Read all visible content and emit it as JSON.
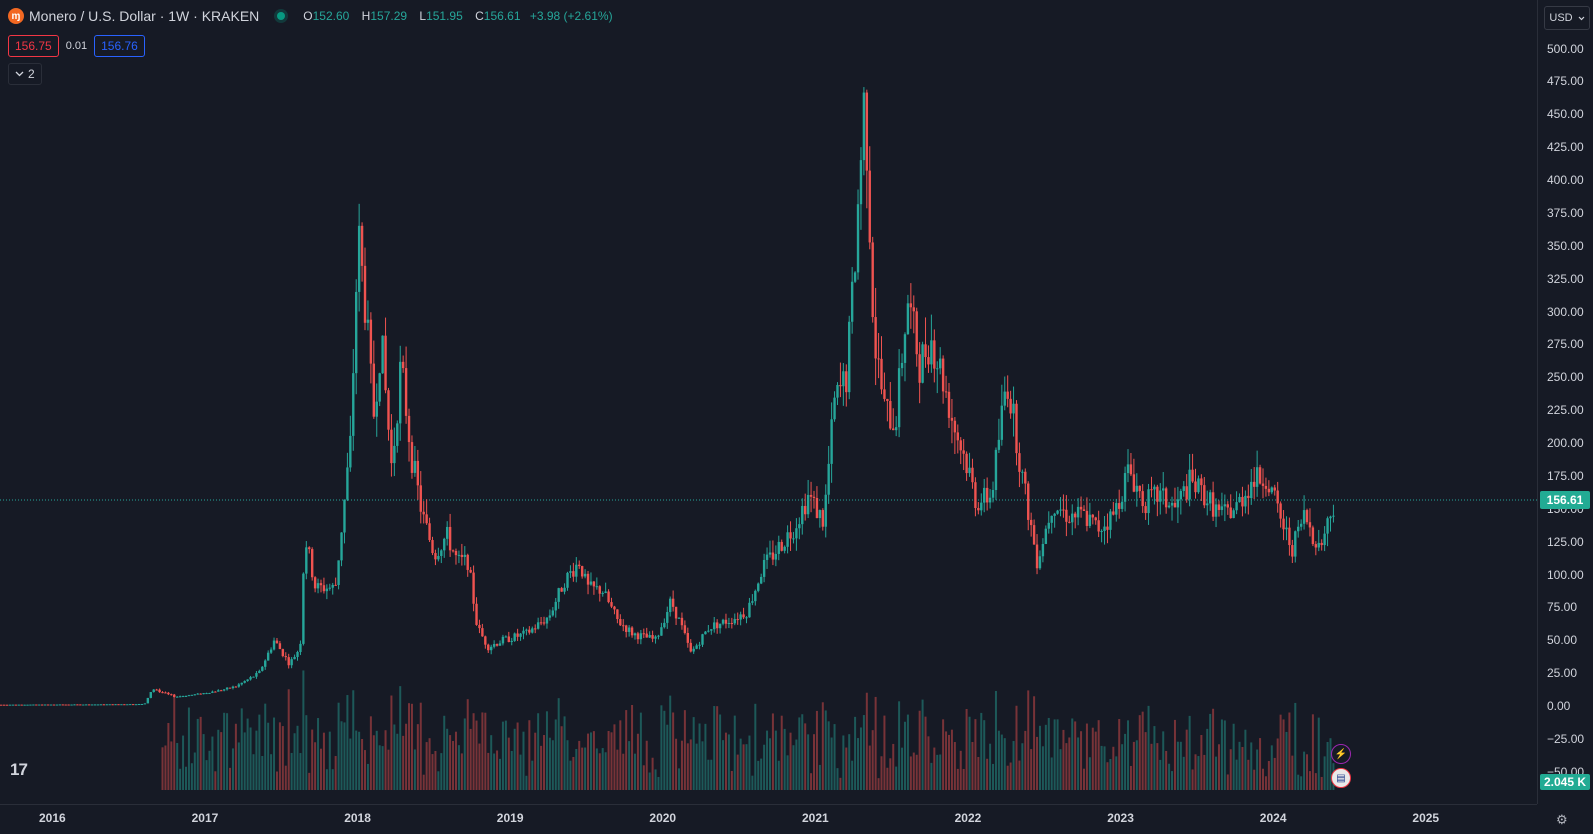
{
  "header": {
    "symbol_title": "Monero / U.S. Dollar · 1W · KRAKEN",
    "logo_glyph": "ɱ",
    "ohlc": [
      {
        "key": "O",
        "value": "152.60"
      },
      {
        "key": "H",
        "value": "157.29"
      },
      {
        "key": "L",
        "value": "151.95"
      },
      {
        "key": "C",
        "value": "156.61"
      }
    ],
    "change": "+3.98 (+2.61%)"
  },
  "quote": {
    "sell": "156.75",
    "spread": "0.01",
    "buy": "156.76"
  },
  "collapse": {
    "icon": "chevron-down-icon",
    "count": "2"
  },
  "currency": {
    "label": "USD"
  },
  "last_price_label": "156.61",
  "volume_label": "2.045 K",
  "tv_logo": "17",
  "colors": {
    "bg": "#161a25",
    "up": "#26a69a",
    "down": "#ef5350",
    "grid": "#2a2e39"
  },
  "chart_data": {
    "type": "candlestick",
    "symbol": "XMRUSD",
    "interval": "1W",
    "exchange": "KRAKEN",
    "y_ticks": [
      "500.00",
      "475.00",
      "450.00",
      "425.00",
      "400.00",
      "375.00",
      "350.00",
      "325.00",
      "300.00",
      "275.00",
      "250.00",
      "225.00",
      "200.00",
      "175.00",
      "150.00",
      "125.00",
      "100.00",
      "75.00",
      "50.00",
      "25.00",
      "0.00",
      "−25.00",
      "−50.00"
    ],
    "y_tick_values": [
      500,
      475,
      450,
      425,
      400,
      375,
      350,
      325,
      300,
      275,
      250,
      225,
      200,
      175,
      150,
      125,
      100,
      75,
      50,
      25,
      0,
      -25,
      -50
    ],
    "x_ticks": [
      "2016",
      "2017",
      "2018",
      "2019",
      "2020",
      "2021",
      "2022",
      "2023",
      "2024",
      "2025"
    ],
    "x_tick_years": [
      2016,
      2017,
      2018,
      2019,
      2020,
      2021,
      2022,
      2023,
      2024,
      2025
    ],
    "ylim": [
      -60,
      525
    ],
    "xlim": [
      2015.66,
      2025.66
    ],
    "last_price": 156.61,
    "grid": false,
    "anchors": [
      [
        2015.66,
        1
      ],
      [
        2016.3,
        1.2
      ],
      [
        2016.6,
        1.5
      ],
      [
        2016.65,
        13
      ],
      [
        2016.8,
        7
      ],
      [
        2016.95,
        9
      ],
      [
        2017.1,
        12
      ],
      [
        2017.2,
        15
      ],
      [
        2017.35,
        25
      ],
      [
        2017.45,
        50
      ],
      [
        2017.55,
        32
      ],
      [
        2017.62,
        45
      ],
      [
        2017.65,
        130
      ],
      [
        2017.72,
        90
      ],
      [
        2017.85,
        90
      ],
      [
        2017.95,
        200
      ],
      [
        2018.0,
        360
      ],
      [
        2018.05,
        300
      ],
      [
        2018.1,
        220
      ],
      [
        2018.15,
        280
      ],
      [
        2018.22,
        180
      ],
      [
        2018.28,
        260
      ],
      [
        2018.35,
        190
      ],
      [
        2018.42,
        145
      ],
      [
        2018.5,
        115
      ],
      [
        2018.58,
        130
      ],
      [
        2018.65,
        110
      ],
      [
        2018.72,
        110
      ],
      [
        2018.78,
        60
      ],
      [
        2018.85,
        45
      ],
      [
        2018.95,
        50
      ],
      [
        2019.1,
        55
      ],
      [
        2019.25,
        68
      ],
      [
        2019.35,
        95
      ],
      [
        2019.45,
        110
      ],
      [
        2019.5,
        90
      ],
      [
        2019.6,
        88
      ],
      [
        2019.7,
        65
      ],
      [
        2019.8,
        55
      ],
      [
        2019.95,
        50
      ],
      [
        2020.05,
        80
      ],
      [
        2020.12,
        60
      ],
      [
        2020.18,
        40
      ],
      [
        2020.3,
        60
      ],
      [
        2020.45,
        66
      ],
      [
        2020.55,
        72
      ],
      [
        2020.65,
        105
      ],
      [
        2020.75,
        120
      ],
      [
        2020.85,
        135
      ],
      [
        2020.95,
        160
      ],
      [
        2021.05,
        140
      ],
      [
        2021.12,
        230
      ],
      [
        2021.2,
        250
      ],
      [
        2021.25,
        330
      ],
      [
        2021.32,
        470
      ],
      [
        2021.38,
        280
      ],
      [
        2021.45,
        225
      ],
      [
        2021.52,
        215
      ],
      [
        2021.6,
        310
      ],
      [
        2021.68,
        260
      ],
      [
        2021.75,
        280
      ],
      [
        2021.82,
        255
      ],
      [
        2021.9,
        215
      ],
      [
        2022.0,
        180
      ],
      [
        2022.05,
        155
      ],
      [
        2022.15,
        160
      ],
      [
        2022.25,
        250
      ],
      [
        2022.3,
        215
      ],
      [
        2022.35,
        175
      ],
      [
        2022.45,
        110
      ],
      [
        2022.55,
        155
      ],
      [
        2022.65,
        145
      ],
      [
        2022.75,
        145
      ],
      [
        2022.85,
        135
      ],
      [
        2022.95,
        145
      ],
      [
        2023.05,
        180
      ],
      [
        2023.15,
        155
      ],
      [
        2023.25,
        160
      ],
      [
        2023.35,
        150
      ],
      [
        2023.45,
        170
      ],
      [
        2023.55,
        160
      ],
      [
        2023.65,
        145
      ],
      [
        2023.75,
        150
      ],
      [
        2023.85,
        170
      ],
      [
        2023.95,
        175
      ],
      [
        2024.05,
        140
      ],
      [
        2024.12,
        120
      ],
      [
        2024.2,
        145
      ],
      [
        2024.3,
        120
      ],
      [
        2024.4,
        156.61
      ]
    ],
    "volume_scale_K": {
      "max": 130,
      "last": 2.045
    }
  }
}
